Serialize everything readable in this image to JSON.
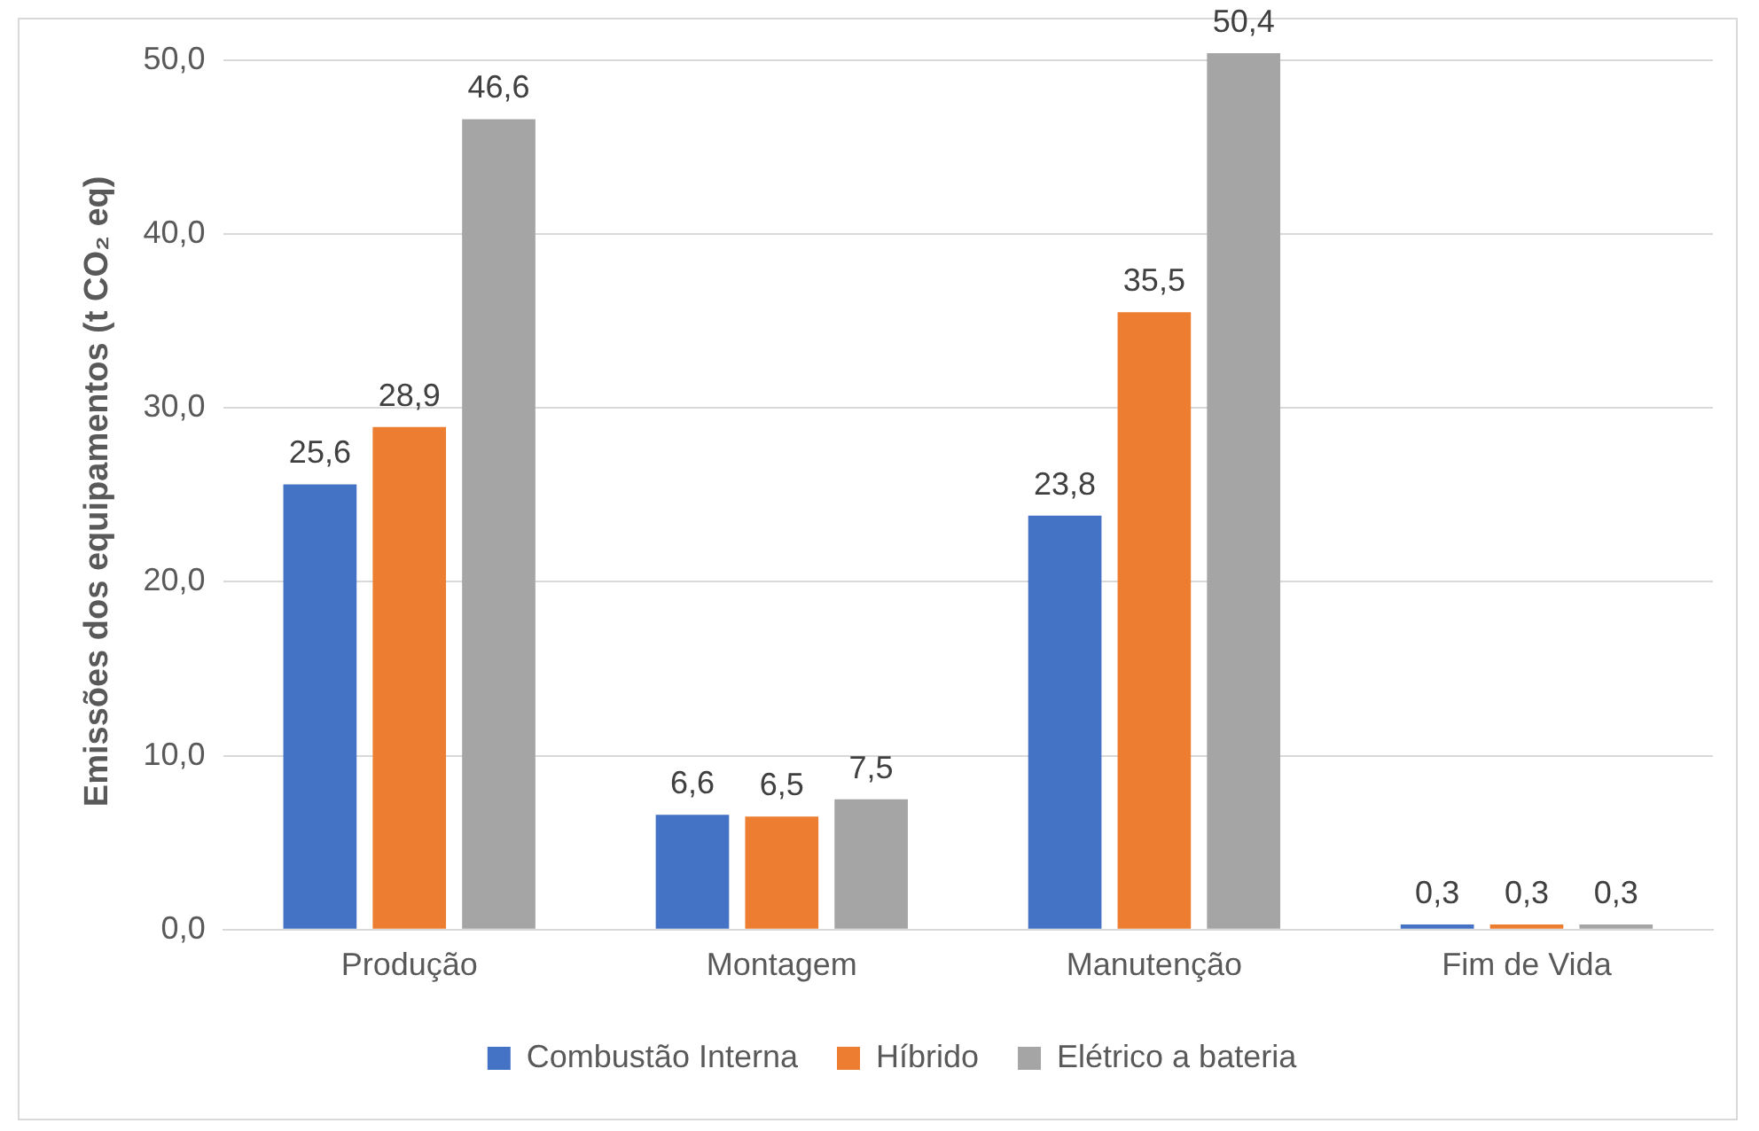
{
  "chart_data": {
    "type": "bar",
    "ylabel": "Emissões dos equipamentos (t CO₂ eq)",
    "categories": [
      "Produção",
      "Montagem",
      "Manutenção",
      "Fim de Vida"
    ],
    "series": [
      {
        "name": "Combustão Interna",
        "color": "#4472c4",
        "values": [
          25.6,
          6.6,
          23.8,
          0.3
        ],
        "value_labels": [
          "25,6",
          "6,6",
          "23,8",
          "0,3"
        ]
      },
      {
        "name": "Híbrido",
        "color": "#ed7d31",
        "values": [
          28.9,
          6.5,
          35.5,
          0.3
        ],
        "value_labels": [
          "28,9",
          "6,5",
          "35,5",
          "0,3"
        ]
      },
      {
        "name": "Elétrico a bateria",
        "color": "#a5a5a5",
        "values": [
          46.6,
          7.5,
          50.4,
          0.3
        ],
        "value_labels": [
          "46,6",
          "7,5",
          "50,4",
          "0,3"
        ]
      }
    ],
    "yticks": [
      {
        "value": 0,
        "label": "0,0"
      },
      {
        "value": 10,
        "label": "10,0"
      },
      {
        "value": 20,
        "label": "20,0"
      },
      {
        "value": 30,
        "label": "30,0"
      },
      {
        "value": 40,
        "label": "40,0"
      },
      {
        "value": 50,
        "label": "50,0"
      }
    ],
    "ylim": [
      0,
      50.4
    ],
    "grid": "y",
    "legend": "bottom"
  }
}
